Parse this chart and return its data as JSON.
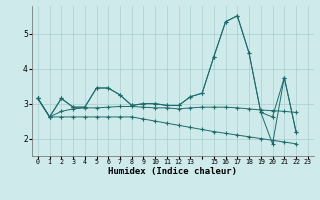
{
  "xlabel": "Humidex (Indice chaleur)",
  "bg_color": "#ceeaea",
  "grid_color": "#aacece",
  "line_color": "#1e6b6b",
  "xlim": [
    -0.5,
    23.5
  ],
  "ylim": [
    1.5,
    5.8
  ],
  "yticks": [
    2,
    3,
    4,
    5
  ],
  "xtick_labels": [
    "0",
    "1",
    "2",
    "3",
    "4",
    "5",
    "6",
    "7",
    "8",
    "9",
    "10",
    "11",
    "12",
    "13",
    "",
    "15",
    "16",
    "17",
    "18",
    "19",
    "20",
    "21",
    "22",
    "23"
  ],
  "series": [
    [
      3.15,
      2.62,
      3.15,
      2.9,
      2.9,
      3.45,
      3.45,
      3.25,
      2.95,
      3.0,
      3.0,
      2.95,
      2.95,
      3.2,
      3.3,
      4.35,
      5.35,
      5.52,
      4.45,
      2.75,
      1.85,
      3.75,
      2.2
    ],
    [
      3.15,
      2.62,
      3.15,
      2.9,
      2.9,
      3.45,
      3.45,
      3.25,
      2.95,
      3.0,
      3.0,
      2.95,
      2.95,
      3.2,
      3.3,
      4.35,
      5.35,
      5.52,
      4.45,
      2.75,
      2.62,
      3.75,
      2.2
    ],
    [
      3.15,
      2.62,
      2.78,
      2.85,
      2.88,
      2.88,
      2.9,
      2.92,
      2.92,
      2.9,
      2.88,
      2.88,
      2.85,
      2.88,
      2.9,
      2.9,
      2.9,
      2.88,
      2.85,
      2.82,
      2.8,
      2.78,
      2.75
    ],
    [
      3.15,
      2.62,
      2.62,
      2.62,
      2.62,
      2.62,
      2.62,
      2.62,
      2.62,
      2.56,
      2.5,
      2.44,
      2.38,
      2.32,
      2.26,
      2.2,
      2.15,
      2.1,
      2.05,
      2.0,
      1.95,
      1.9,
      1.85
    ]
  ]
}
